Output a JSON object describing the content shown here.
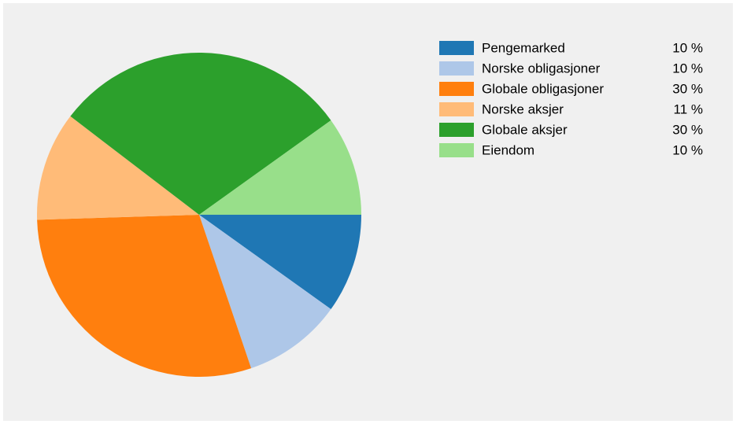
{
  "chart_data": {
    "type": "pie",
    "categories": [
      "Pengemarked",
      "Norske obligasjoner",
      "Globale obligasjoner",
      "Norske aksjer",
      "Globale aksjer",
      "Eiendom"
    ],
    "values": [
      10,
      10,
      30,
      11,
      30,
      10
    ],
    "value_labels": [
      "10 %",
      "10 %",
      "30 %",
      "11 %",
      "30 %",
      "10 %"
    ],
    "colors": [
      "#1f77b4",
      "#aec7e8",
      "#ff7f0e",
      "#ffbb78",
      "#2ca02c",
      "#98df8a"
    ],
    "legend": "top-right"
  }
}
